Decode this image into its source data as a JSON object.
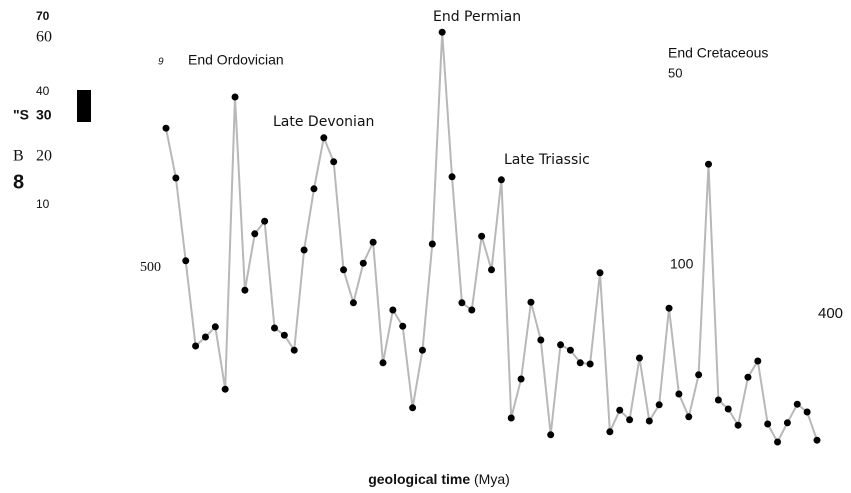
{
  "chart_data": {
    "type": "line",
    "values": [
      52.8,
      44.5,
      30.7,
      16.5,
      18,
      19.7,
      9.3,
      58,
      25.8,
      35.2,
      37.3,
      19.5,
      18.3,
      15.8,
      32.5,
      42.7,
      51.2,
      47.2,
      29.2,
      23.7,
      30.3,
      33.8,
      13.7,
      22.5,
      19.8,
      6.2,
      15.8,
      33.5,
      68.8,
      44.7,
      23.7,
      22.5,
      34.8,
      29.2,
      44.2,
      4.5,
      11,
      23.8,
      17.5,
      1.7,
      16.7,
      15.8,
      13.7,
      13.5,
      28.7,
      2.2,
      5.8,
      4.2,
      14.5,
      4,
      6.7,
      22.8,
      8.5,
      4.7,
      11.7,
      46.8,
      7.5,
      6,
      3.3,
      11.3,
      14,
      3.5,
      0.5,
      3.7,
      6.8,
      5.5,
      0.8
    ],
    "color": "#b8b8b8",
    "marker_color": "#000000",
    "ylim": [
      0,
      74
    ],
    "annotations": [
      "End Ordovician",
      "Late Devonian",
      "End Permian",
      "Late Triassic",
      "End Cretaceous"
    ],
    "scattered_labels": [
      "70",
      "60",
      "40",
      "30",
      "\"S",
      "B",
      "20",
      "8",
      "10",
      "9",
      "500",
      "100",
      "400",
      "50"
    ],
    "x_label": {
      "bold": "geological time",
      "rest": "(Mya)"
    }
  }
}
